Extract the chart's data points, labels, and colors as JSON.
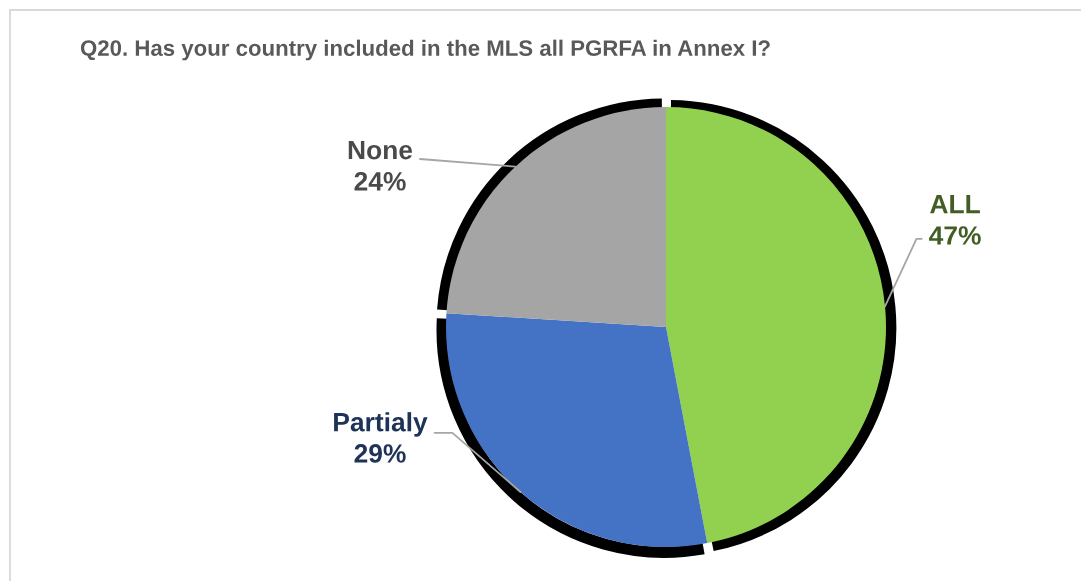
{
  "chart_data": {
    "type": "pie",
    "title": "Q20. Has your country included in the MLS all PGRFA in Annex I?",
    "categories": [
      "ALL",
      "Partialy",
      "None"
    ],
    "values": [
      47,
      29,
      24
    ],
    "value_labels": [
      "47%",
      "29%",
      "24%"
    ],
    "colors": [
      "#92d050",
      "#4472c4",
      "#a5a5a5"
    ]
  }
}
